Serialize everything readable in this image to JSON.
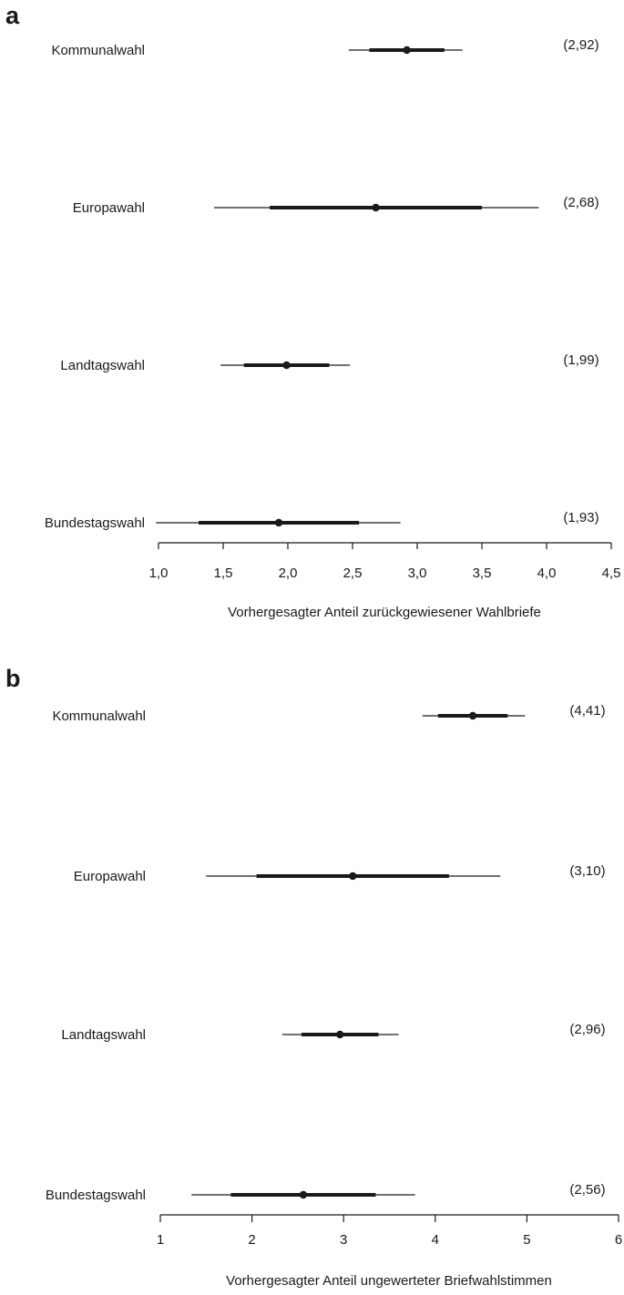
{
  "chart_data": [
    {
      "panel": "a",
      "type": "scatter",
      "xlabel": "Vorhergesagter Anteil zurückgewiesener Wahlbriefe",
      "xlim": [
        1.0,
        4.5
      ],
      "xticks": [
        1.0,
        1.5,
        2.0,
        2.5,
        3.0,
        3.5,
        4.0,
        4.5
      ],
      "xtick_labels": [
        "1,0",
        "1,5",
        "2,0",
        "2,5",
        "3,0",
        "3,5",
        "4,0",
        "4,5"
      ],
      "rows": [
        {
          "label": "Kommunalwahl",
          "estimate": 2.92,
          "value_label": "(2,92)",
          "inner": [
            2.63,
            3.21
          ],
          "outer": [
            2.47,
            3.35
          ]
        },
        {
          "label": "Europawahl",
          "estimate": 2.68,
          "value_label": "(2,68)",
          "inner": [
            1.86,
            3.5
          ],
          "outer": [
            1.43,
            3.94
          ]
        },
        {
          "label": "Landtagswahl",
          "estimate": 1.99,
          "value_label": "(1,99)",
          "inner": [
            1.66,
            2.32
          ],
          "outer": [
            1.48,
            2.48
          ]
        },
        {
          "label": "Bundestagswahl",
          "estimate": 1.93,
          "value_label": "(1,93)",
          "inner": [
            1.31,
            2.55
          ],
          "outer": [
            0.98,
            2.87
          ]
        }
      ]
    },
    {
      "panel": "b",
      "type": "scatter",
      "xlabel": "Vorhergesagter Anteil ungewerteter Briefwahlstimmen",
      "xlim": [
        1,
        6
      ],
      "xticks": [
        1,
        2,
        3,
        4,
        5,
        6
      ],
      "xtick_labels": [
        "1",
        "2",
        "3",
        "4",
        "5",
        "6"
      ],
      "rows": [
        {
          "label": "Kommunalwahl",
          "estimate": 4.41,
          "value_label": "(4,41)",
          "inner": [
            4.03,
            4.79
          ],
          "outer": [
            3.86,
            4.98
          ]
        },
        {
          "label": "Europawahl",
          "estimate": 3.1,
          "value_label": "(3,10)",
          "inner": [
            2.05,
            4.15
          ],
          "outer": [
            1.5,
            4.71
          ]
        },
        {
          "label": "Landtagswahl",
          "estimate": 2.96,
          "value_label": "(2,96)",
          "inner": [
            2.54,
            3.38
          ],
          "outer": [
            2.33,
            3.6
          ]
        },
        {
          "label": "Bundestagswahl",
          "estimate": 2.56,
          "value_label": "(2,56)",
          "inner": [
            1.77,
            3.35
          ],
          "outer": [
            1.34,
            3.78
          ]
        }
      ]
    }
  ],
  "panels": {
    "a": {
      "letter": "a"
    },
    "b": {
      "letter": "b"
    }
  },
  "colors": {
    "ink": "#1a1a1a"
  }
}
